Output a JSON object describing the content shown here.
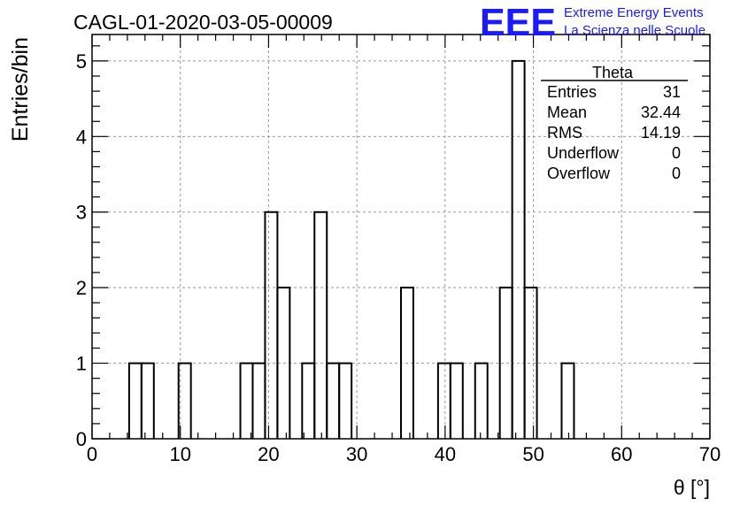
{
  "chart_data": {
    "type": "histogram",
    "title": "CAGL-01-2020-03-05-00009",
    "xlabel": "θ [°]",
    "ylabel": "Entries/bin",
    "xlim": [
      0,
      70
    ],
    "ylim": [
      0,
      5.35
    ],
    "x_ticks": [
      0,
      10,
      20,
      30,
      40,
      50,
      60,
      70
    ],
    "y_ticks": [
      0,
      1,
      2,
      3,
      4,
      5
    ],
    "grid": true,
    "bin_width": 1.4,
    "x": [
      4.2,
      5.6,
      9.8,
      16.8,
      18.2,
      19.6,
      21.0,
      23.8,
      25.2,
      26.6,
      28.0,
      35.0,
      39.2,
      40.6,
      43.4,
      46.2,
      47.6,
      49.0,
      53.2
    ],
    "values": [
      1,
      1,
      1,
      1,
      1,
      3,
      2,
      1,
      3,
      1,
      1,
      2,
      1,
      1,
      1,
      2,
      5,
      2,
      1
    ],
    "stats_box": {
      "name": "Theta",
      "position": "top-right",
      "rows": [
        {
          "label": "Entries",
          "value": "31"
        },
        {
          "label": "Mean",
          "value": "32.44"
        },
        {
          "label": "RMS",
          "value": "14.19"
        },
        {
          "label": "Underflow",
          "value": "0"
        },
        {
          "label": "Overflow",
          "value": "0"
        }
      ]
    }
  },
  "logo": {
    "text": "EEE",
    "line1": "Extreme Energy Events",
    "line2": "La Scienza nelle Scuole",
    "color": "#1a1aff"
  }
}
